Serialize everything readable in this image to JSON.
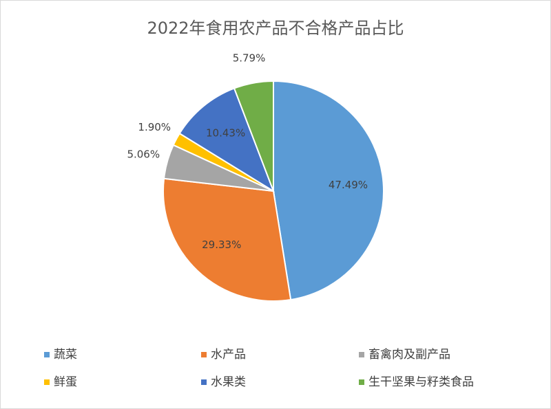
{
  "chart_data": {
    "type": "pie",
    "title": "2022年食用农产品不合格产品占比",
    "categories": [
      "蔬菜",
      "水产品",
      "畜禽肉及副产品",
      "鲜蛋",
      "水果类",
      "生干坚果与籽类食品"
    ],
    "values": [
      47.49,
      29.33,
      5.06,
      1.9,
      10.43,
      5.79
    ],
    "value_labels": [
      "47.49%",
      "29.33%",
      "5.06%",
      "1.90%",
      "10.43%",
      "5.79%"
    ],
    "colors": [
      "#5b9bd5",
      "#ed7d31",
      "#a5a5a5",
      "#ffc000",
      "#4472c4",
      "#70ad47"
    ],
    "legend": "bottom"
  }
}
